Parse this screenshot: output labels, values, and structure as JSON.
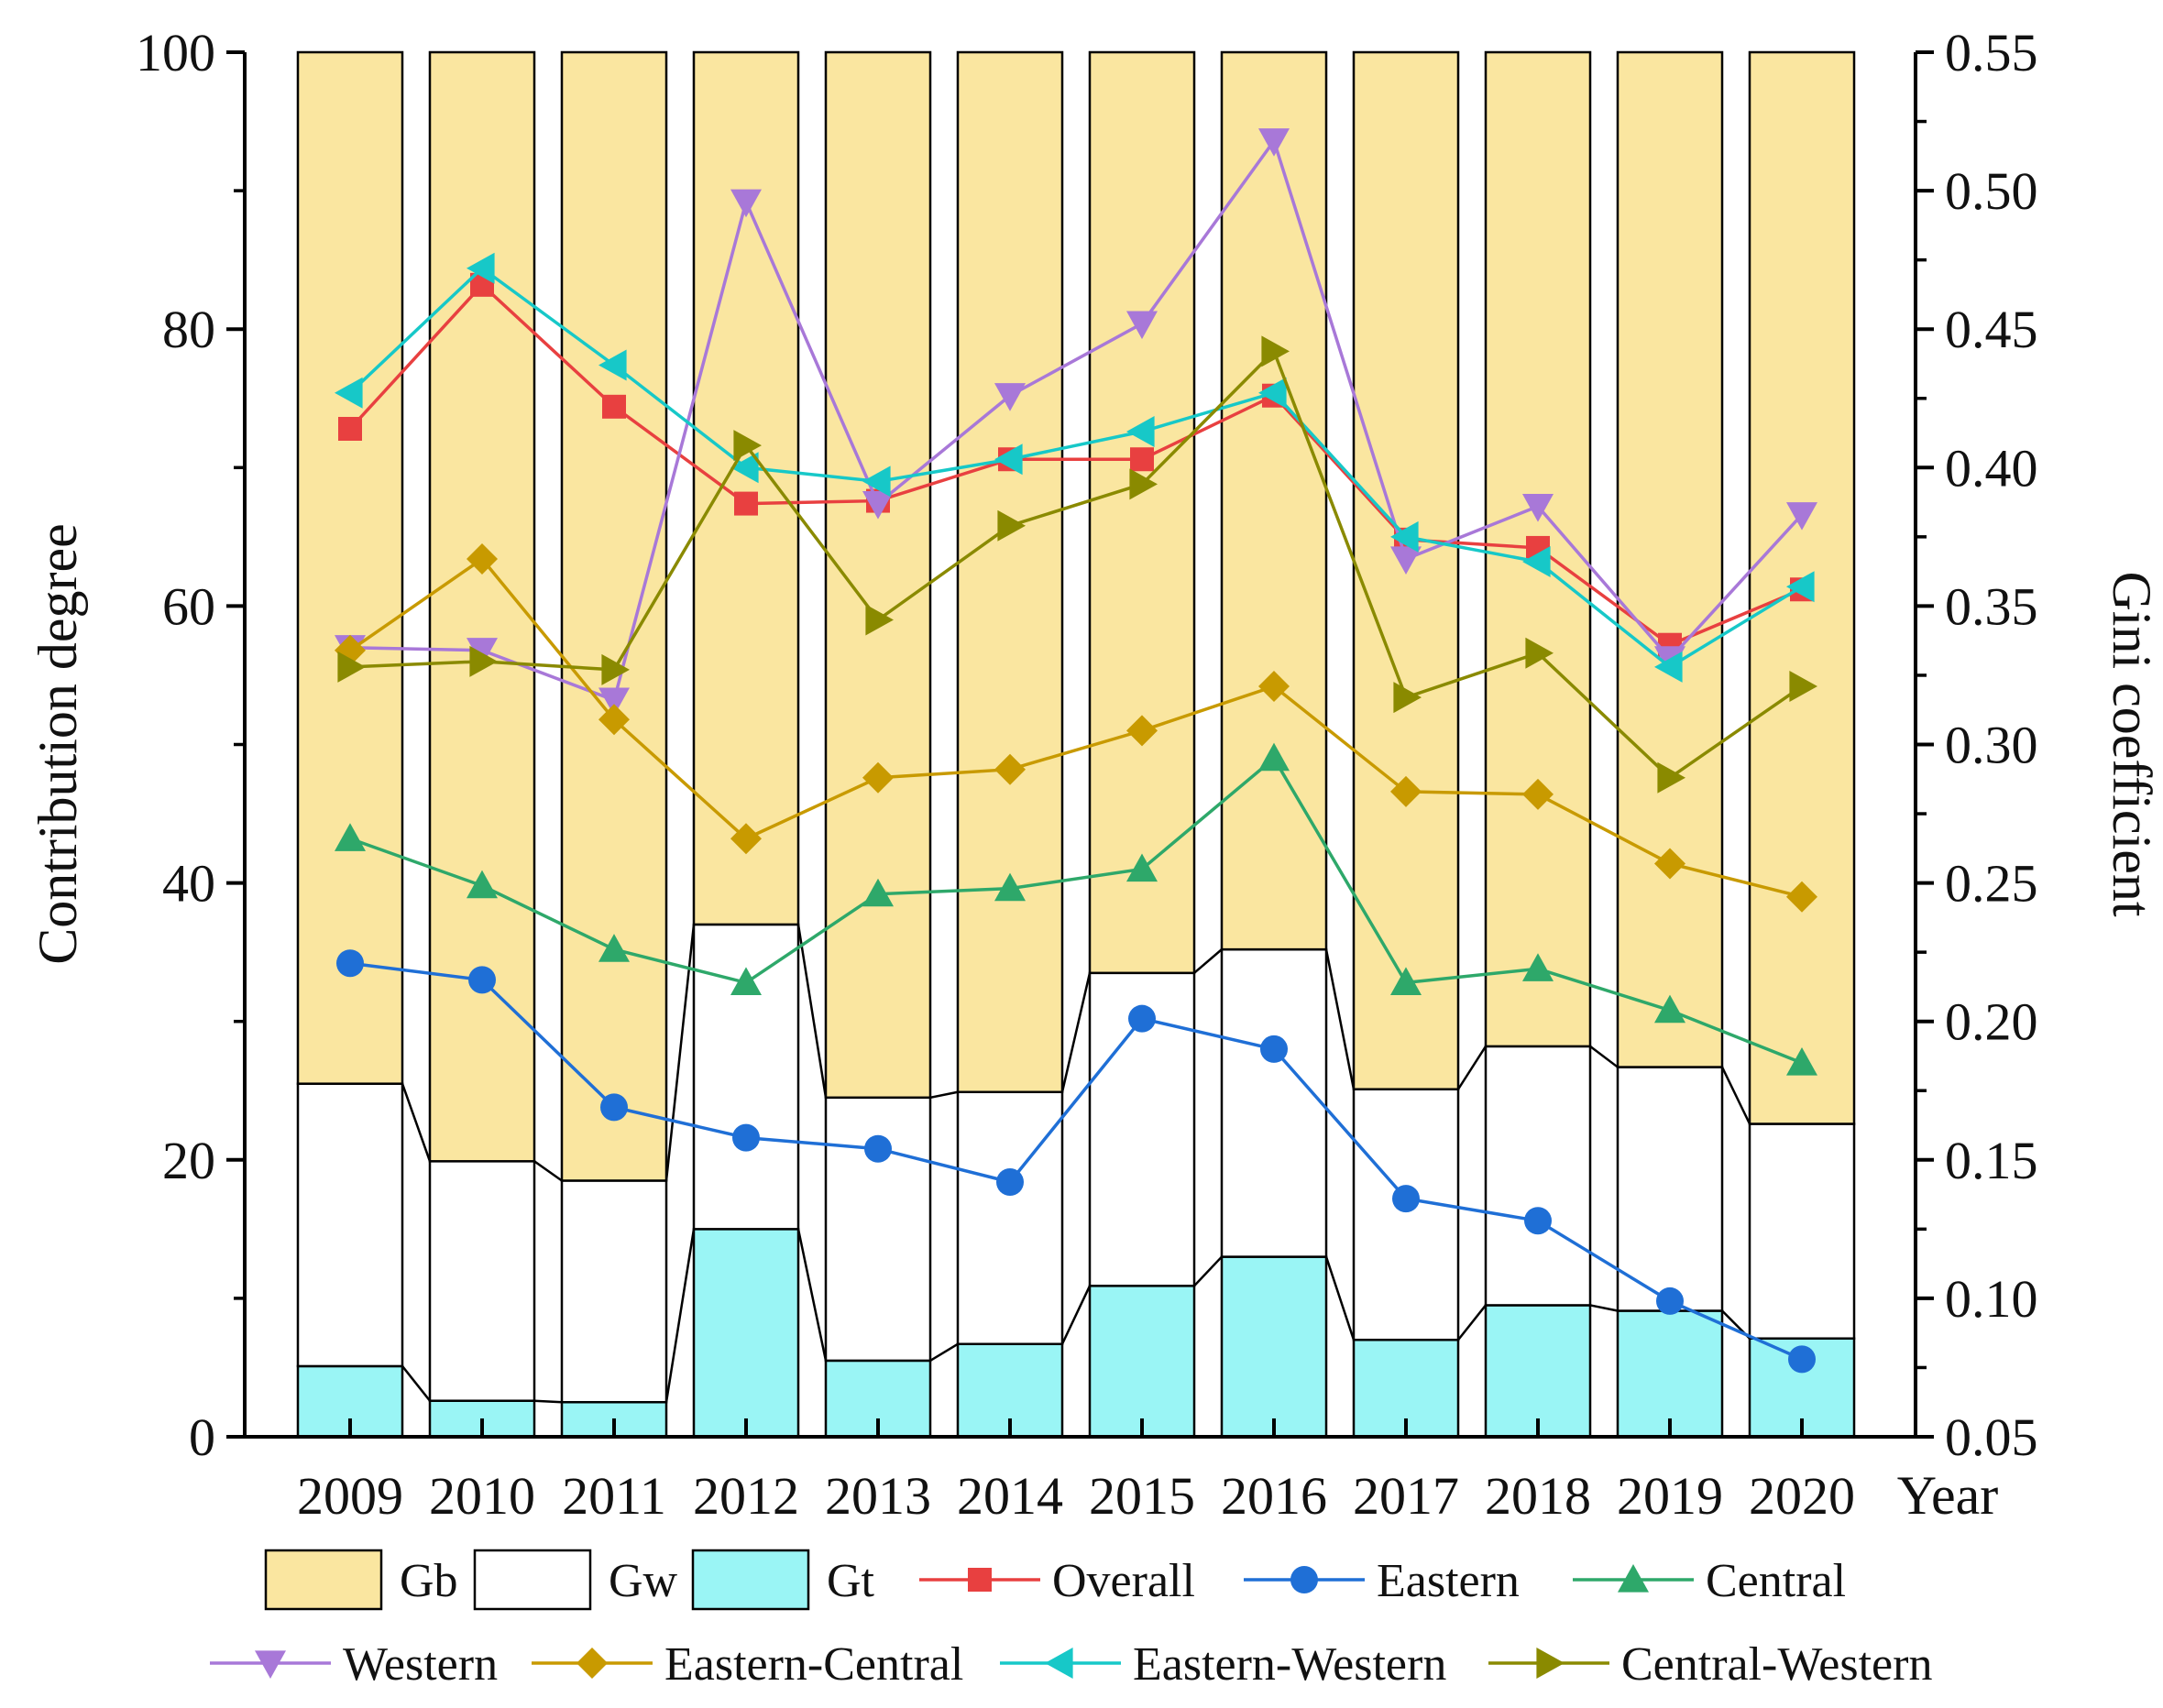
{
  "chart_data": {
    "type": "bar+line",
    "categories": [
      "2009",
      "2010",
      "2011",
      "2012",
      "2013",
      "2014",
      "2015",
      "2016",
      "2017",
      "2018",
      "2019",
      "2020"
    ],
    "left_axis": {
      "label": "Contribution degree",
      "ylim": [
        0,
        100
      ],
      "major_ticks": [
        0,
        20,
        40,
        60,
        80,
        100
      ],
      "tick_labels": [
        "0",
        "20",
        "40",
        "60",
        "80",
        "100"
      ]
    },
    "right_axis": {
      "label": "Gini coefficient",
      "ylim": [
        0.05,
        0.55
      ],
      "major_ticks": [
        0.05,
        0.1,
        0.15,
        0.2,
        0.25,
        0.3,
        0.35,
        0.4,
        0.45,
        0.5,
        0.55
      ],
      "tick_labels": [
        "0.05",
        "0.10",
        "0.15",
        "0.20",
        "0.25",
        "0.30",
        "0.35",
        "0.40",
        "0.45",
        "0.50",
        "0.55"
      ]
    },
    "xlabel": "Year",
    "stacked_bars": [
      {
        "name": "Gb",
        "color": "#fae6a0",
        "values": [
          74.5,
          80.1,
          81.5,
          63.0,
          75.5,
          75.1,
          66.5,
          64.8,
          74.9,
          71.8,
          73.3,
          77.4
        ]
      },
      {
        "name": "Gw",
        "color": "#ffffff",
        "values": [
          20.4,
          17.3,
          16.0,
          22.0,
          19.0,
          18.2,
          22.6,
          22.2,
          18.1,
          18.7,
          17.6,
          15.5
        ]
      },
      {
        "name": "Gt",
        "color": "#9af5f5",
        "values": [
          5.1,
          2.6,
          2.5,
          15.0,
          5.5,
          6.7,
          10.9,
          13.0,
          7.0,
          9.5,
          9.1,
          7.1
        ]
      }
    ],
    "line_series": [
      {
        "name": "Overall",
        "color": "#e84040",
        "marker": "square",
        "values": [
          0.414,
          0.466,
          0.422,
          0.387,
          0.388,
          0.403,
          0.403,
          0.426,
          0.374,
          0.371,
          0.336,
          0.356
        ]
      },
      {
        "name": "Eastern",
        "color": "#1f6fd6",
        "marker": "circle",
        "values": [
          0.221,
          0.215,
          0.169,
          0.158,
          0.154,
          0.142,
          0.201,
          0.19,
          0.136,
          0.128,
          0.099,
          0.078
        ]
      },
      {
        "name": "Central",
        "color": "#2ea86a",
        "marker": "triangle-up",
        "values": [
          0.266,
          0.249,
          0.226,
          0.214,
          0.246,
          0.248,
          0.255,
          0.295,
          0.214,
          0.219,
          0.204,
          0.185
        ]
      },
      {
        "name": "Western",
        "color": "#a878d8",
        "marker": "triangle-down",
        "values": [
          0.335,
          0.334,
          0.316,
          0.496,
          0.387,
          0.426,
          0.452,
          0.518,
          0.367,
          0.386,
          0.331,
          0.383
        ]
      },
      {
        "name": "Eastern-Central",
        "color": "#c89a00",
        "marker": "diamond",
        "values": [
          0.334,
          0.367,
          0.309,
          0.266,
          0.288,
          0.291,
          0.305,
          0.321,
          0.283,
          0.282,
          0.257,
          0.245
        ]
      },
      {
        "name": "Eastern-Western",
        "color": "#17c8c8",
        "marker": "triangle-left",
        "values": [
          0.427,
          0.472,
          0.437,
          0.4,
          0.395,
          0.403,
          0.413,
          0.427,
          0.375,
          0.366,
          0.328,
          0.357
        ]
      },
      {
        "name": "Central-Western",
        "color": "#8a8a00",
        "marker": "triangle-right",
        "values": [
          0.328,
          0.33,
          0.327,
          0.408,
          0.345,
          0.379,
          0.394,
          0.442,
          0.317,
          0.333,
          0.288,
          0.321
        ]
      }
    ],
    "legend": {
      "placement": "bottom",
      "entries": [
        "Gb",
        "Gw",
        "Gt",
        "Overall",
        "Eastern",
        "Central",
        "Western",
        "Eastern-Central",
        "Eastern-Western",
        "Central-Western"
      ]
    }
  }
}
